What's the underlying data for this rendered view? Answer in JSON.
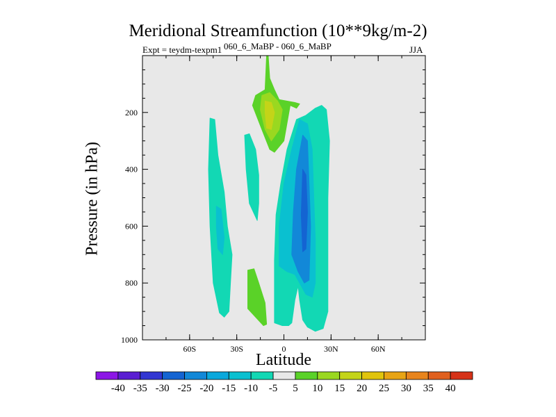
{
  "chart_data": {
    "type": "heatmap",
    "title": "Meridional Streamfunction (10**9kg/m-2)",
    "left_string": "Expt = teydm-texpm1",
    "center_string": "060_6_MaBP - 060_6_MaBP",
    "right_string": "JJA",
    "xlabel": "Latitude",
    "ylabel": "Pressure (in hPa)",
    "xlim": [
      -90,
      90
    ],
    "ylim": [
      1000,
      0
    ],
    "x_ticks": [
      {
        "value": -60,
        "label": "60S"
      },
      {
        "value": -30,
        "label": "30S"
      },
      {
        "value": 0,
        "label": "0"
      },
      {
        "value": 30,
        "label": "30N"
      },
      {
        "value": 60,
        "label": "60N"
      }
    ],
    "y_ticks": [
      {
        "value": 200,
        "label": "200"
      },
      {
        "value": 400,
        "label": "400"
      },
      {
        "value": 600,
        "label": "600"
      },
      {
        "value": 800,
        "label": "800"
      },
      {
        "value": 1000,
        "label": "1000"
      }
    ],
    "colorbar": {
      "labels": [
        "-40",
        "-35",
        "-30",
        "-25",
        "-20",
        "-15",
        "-10",
        "-5",
        "5",
        "10",
        "15",
        "20",
        "25",
        "30",
        "35",
        "40"
      ],
      "colors": [
        "#8c16e6",
        "#5a1ed2",
        "#3236d2",
        "#1464d2",
        "#1288d8",
        "#0aa8dc",
        "#0ac0d0",
        "#12d8b4",
        "#e8e8e8",
        "#5ad228",
        "#9ad820",
        "#c4d418",
        "#e0c40c",
        "#e8a414",
        "#e8841c",
        "#e0601e",
        "#d63218"
      ]
    },
    "contours": [
      {
        "name": "neg-band-50s",
        "level": "-10 to -5",
        "color": "#12d8b4",
        "points": [
          [
            -47,
            220
          ],
          [
            -44,
            225
          ],
          [
            -42,
            350
          ],
          [
            -38,
            480
          ],
          [
            -36,
            600
          ],
          [
            -33,
            700
          ],
          [
            -34,
            800
          ],
          [
            -35,
            900
          ],
          [
            -38,
            920
          ],
          [
            -41,
            905
          ],
          [
            -45,
            800
          ],
          [
            -47,
            600
          ],
          [
            -48,
            400
          ]
        ]
      },
      {
        "name": "neg-core-50s",
        "level": "-15 to -10",
        "color": "#0ac0d0",
        "points": [
          [
            -43,
            530
          ],
          [
            -40,
            540
          ],
          [
            -38,
            640
          ],
          [
            -39,
            700
          ],
          [
            -42,
            680
          ],
          [
            -43,
            600
          ]
        ]
      },
      {
        "name": "neg-band-25s",
        "level": "-10 to -5",
        "color": "#12d8b4",
        "points": [
          [
            -25,
            280
          ],
          [
            -22,
            275
          ],
          [
            -18,
            330
          ],
          [
            -16,
            420
          ],
          [
            -16,
            520
          ],
          [
            -17,
            580
          ],
          [
            -22,
            520
          ],
          [
            -24,
            400
          ]
        ]
      },
      {
        "name": "pos-plume-upper",
        "level": "5 to 10",
        "color": "#5ad228",
        "points": [
          [
            -12,
            120
          ],
          [
            -11,
            0
          ],
          [
            -10,
            0
          ],
          [
            -9,
            80
          ],
          [
            -6,
            120
          ],
          [
            -3,
            155
          ],
          [
            7,
            165
          ],
          [
            10,
            170
          ],
          [
            8,
            185
          ],
          [
            4,
            175
          ],
          [
            0,
            300
          ],
          [
            -6,
            340
          ],
          [
            -9,
            330
          ],
          [
            -14,
            260
          ],
          [
            -20,
            175
          ],
          [
            -18,
            140
          ]
        ]
      },
      {
        "name": "pos-plume-mid",
        "level": "10 to 15",
        "color": "#9ad820",
        "points": [
          [
            -14,
            140
          ],
          [
            -9,
            130
          ],
          [
            -4,
            160
          ],
          [
            -1,
            190
          ],
          [
            -3,
            260
          ],
          [
            -8,
            300
          ],
          [
            -12,
            260
          ],
          [
            -15,
            190
          ]
        ]
      },
      {
        "name": "pos-plume-core",
        "level": "15 to 20",
        "color": "#c4d418",
        "points": [
          [
            -12,
            160
          ],
          [
            -8,
            165
          ],
          [
            -6,
            200
          ],
          [
            -8,
            260
          ],
          [
            -11,
            255
          ],
          [
            -12,
            200
          ]
        ]
      },
      {
        "name": "pos-blob-lower",
        "level": "5 to 10",
        "color": "#5ad228",
        "points": [
          [
            -23,
            755
          ],
          [
            -19,
            750
          ],
          [
            -16,
            800
          ],
          [
            -12,
            870
          ],
          [
            -11,
            945
          ],
          [
            -13,
            950
          ],
          [
            -18,
            920
          ],
          [
            -23,
            890
          ],
          [
            -23,
            800
          ]
        ]
      },
      {
        "name": "neg-tropical-outer",
        "level": "-10 to -5",
        "color": "#12d8b4",
        "points": [
          [
            20,
            185
          ],
          [
            24,
            175
          ],
          [
            27,
            190
          ],
          [
            29,
            300
          ],
          [
            28,
            500
          ],
          [
            28,
            700
          ],
          [
            28,
            900
          ],
          [
            25,
            960
          ],
          [
            20,
            970
          ],
          [
            15,
            955
          ],
          [
            12,
            930
          ],
          [
            10,
            860
          ],
          [
            9,
            810
          ],
          [
            7,
            860
          ],
          [
            5,
            940
          ],
          [
            3,
            950
          ],
          [
            -1,
            950
          ],
          [
            -6,
            940
          ],
          [
            -6,
            720
          ],
          [
            -5,
            560
          ],
          [
            -2,
            450
          ],
          [
            2,
            330
          ],
          [
            8,
            225
          ],
          [
            14,
            210
          ]
        ]
      },
      {
        "name": "neg-tropical-mid",
        "level": "-15 to -10",
        "color": "#0ac0d0",
        "points": [
          [
            10,
            225
          ],
          [
            15,
            240
          ],
          [
            18,
            330
          ],
          [
            19,
            500
          ],
          [
            20,
            650
          ],
          [
            20,
            800
          ],
          [
            18,
            850
          ],
          [
            14,
            840
          ],
          [
            10,
            800
          ],
          [
            7,
            770
          ],
          [
            2,
            760
          ],
          [
            -3,
            740
          ],
          [
            -3,
            600
          ],
          [
            0,
            450
          ],
          [
            5,
            330
          ]
        ]
      },
      {
        "name": "neg-tropical-inner",
        "level": "-20 to -15",
        "color": "#1288d8",
        "points": [
          [
            12,
            280
          ],
          [
            15,
            300
          ],
          [
            16,
            450
          ],
          [
            17,
            600
          ],
          [
            16,
            790
          ],
          [
            13,
            800
          ],
          [
            9,
            760
          ],
          [
            5,
            700
          ],
          [
            6,
            550
          ],
          [
            8,
            400
          ]
        ]
      },
      {
        "name": "neg-tropical-core",
        "level": "-25 to -20",
        "color": "#1464d2",
        "points": [
          [
            12,
            400
          ],
          [
            14,
            420
          ],
          [
            15,
            550
          ],
          [
            14,
            680
          ],
          [
            12,
            690
          ],
          [
            11,
            560
          ]
        ]
      }
    ]
  }
}
